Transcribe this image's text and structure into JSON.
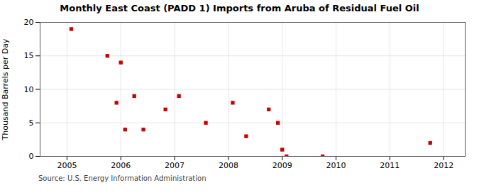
{
  "chart_data": {
    "type": "scatter",
    "title": "Monthly East Coast (PADD 1) Imports from Aruba of Residual Fuel Oil",
    "ylabel": "Thousand Barrels per Day",
    "annotations": [
      "Source: U.S. Energy Information Administration"
    ],
    "x": [
      2005.08,
      2005.75,
      2005.92,
      2006.0,
      2006.08,
      2006.25,
      2006.42,
      2006.83,
      2007.08,
      2007.58,
      2008.08,
      2008.33,
      2008.75,
      2008.92,
      2009.0,
      2009.08,
      2009.75,
      2011.75
    ],
    "values": [
      19,
      15,
      8,
      14,
      4,
      9,
      4,
      7,
      9,
      5,
      8,
      3,
      7,
      5,
      1,
      0,
      0,
      2
    ],
    "color": "#cc0000",
    "marker": "square",
    "xlim": [
      2004.5,
      2012.4
    ],
    "xticks": [
      2005,
      2006,
      2007,
      2008,
      2009,
      2010,
      2011,
      2012
    ],
    "ylim": [
      0,
      20
    ],
    "yticks": [
      0,
      5,
      10,
      15,
      20
    ],
    "grid": true
  }
}
